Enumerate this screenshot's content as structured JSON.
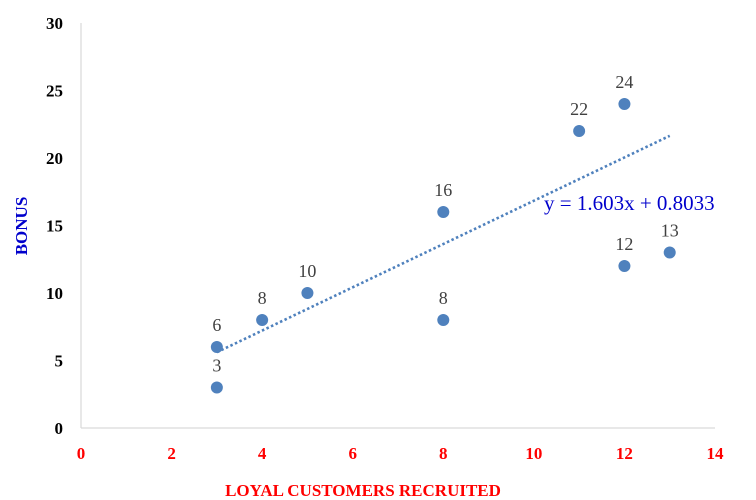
{
  "chart_data": {
    "type": "scatter",
    "title": "",
    "xlabel": "LOYAL CUSTOMERS RECRUITED",
    "ylabel": "BONUS",
    "xlim": [
      0,
      14
    ],
    "ylim": [
      0,
      30
    ],
    "xticks": [
      "0",
      "2",
      "4",
      "6",
      "8",
      "10",
      "12",
      "14"
    ],
    "yticks": [
      "0",
      "5",
      "10",
      "15",
      "20",
      "25",
      "30"
    ],
    "grid": false,
    "points": [
      {
        "x": 3,
        "y": 6,
        "label": "6"
      },
      {
        "x": 3,
        "y": 3,
        "label": "3"
      },
      {
        "x": 4,
        "y": 8,
        "label": "8"
      },
      {
        "x": 5,
        "y": 10,
        "label": "10"
      },
      {
        "x": 8,
        "y": 16,
        "label": "16"
      },
      {
        "x": 8,
        "y": 8,
        "label": "8"
      },
      {
        "x": 11,
        "y": 22,
        "label": "22"
      },
      {
        "x": 12,
        "y": 24,
        "label": "24"
      },
      {
        "x": 12,
        "y": 12,
        "label": "12"
      },
      {
        "x": 13,
        "y": 13,
        "label": "13"
      }
    ],
    "trendline": {
      "type": "linear",
      "slope": 1.603,
      "intercept": 0.8033,
      "x_range": [
        3,
        13
      ],
      "equation_label": "y = 1.603x + 0.8033",
      "style": "dotted"
    },
    "colors": {
      "marker": "#4f81bd",
      "trendline": "#4f81bd",
      "xtick_labels": "#ff0000",
      "xlabel": "#ff0000",
      "ylabel": "#0000cc",
      "equation": "#0000cc",
      "axis": "#d9d9d9"
    }
  }
}
